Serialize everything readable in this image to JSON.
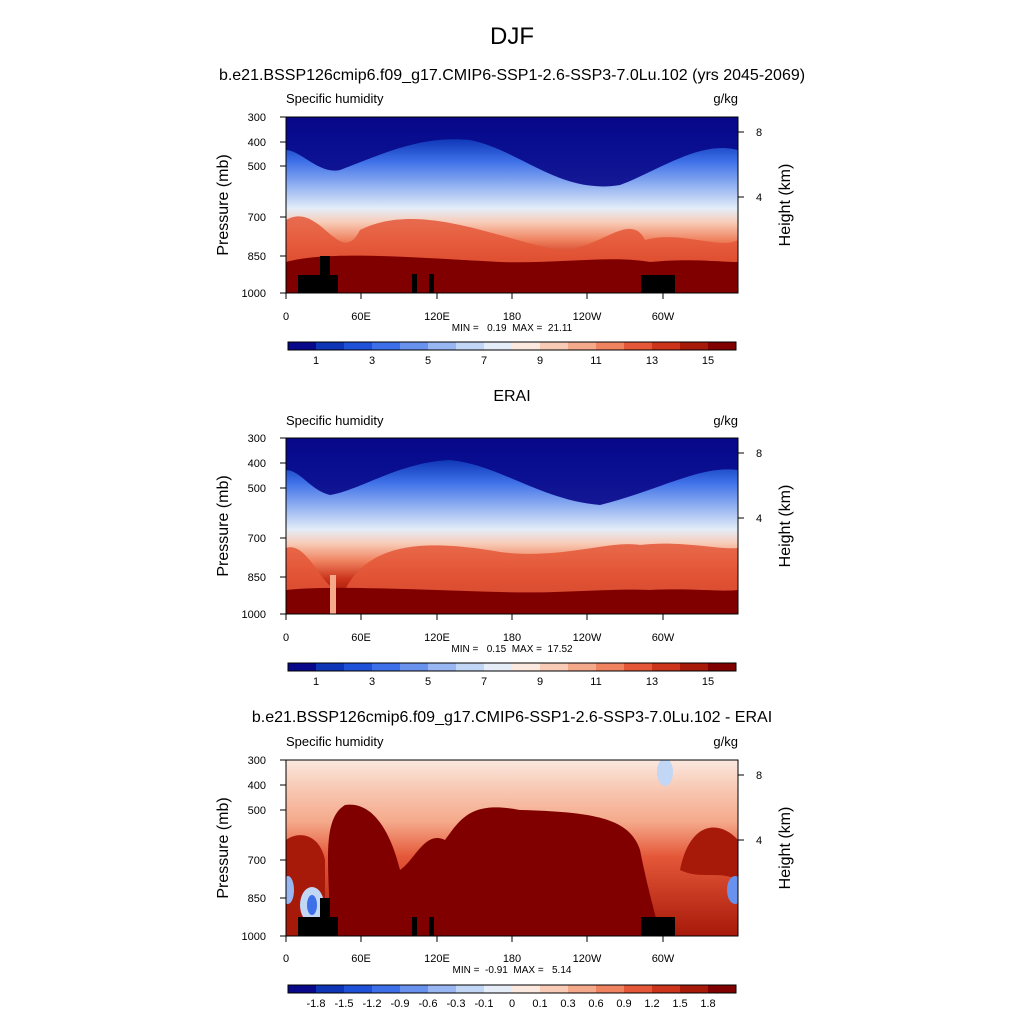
{
  "figure": {
    "title": "DJF"
  },
  "shared": {
    "variable_label": "Specific humidity",
    "units_label": "g/kg",
    "left_axis_title": "Pressure (mb)",
    "right_axis_title": "Height (km)"
  },
  "chart_data": [
    {
      "type": "heatmap",
      "title": "b.e21.BSSP126cmip6.f09_g17.CMIP6-SSP1-2.6-SSP3-7.0Lu.102 (yrs 2045-2069)",
      "subtitle_left": "Specific humidity",
      "subtitle_right": "g/kg",
      "ylabel": "Pressure (mb)",
      "ylabel_right": "Height (km)",
      "x_ticks": [
        "0",
        "60E",
        "120E",
        "180",
        "120W",
        "60W"
      ],
      "y_ticks": [
        300,
        400,
        500,
        700,
        850,
        1000
      ],
      "y_right_ticks": [
        8,
        4
      ],
      "xlim": [
        0,
        360
      ],
      "ylim": [
        1000,
        300
      ],
      "stats_text": "MIN =   0.19  MAX =  21.11",
      "min": 0.19,
      "max": 21.11,
      "levels": [
        0,
        1,
        2,
        3,
        4,
        5,
        6,
        7,
        8,
        9,
        10,
        11,
        12,
        13,
        14,
        15,
        16
      ],
      "colorbar_labels": [
        "1",
        "3",
        "5",
        "7",
        "9",
        "11",
        "13",
        "15"
      ],
      "colorbar_colors": [
        "#08088a",
        "#0d35b5",
        "#1f50d8",
        "#3d6fe8",
        "#6892ee",
        "#98b6f2",
        "#c2d6f5",
        "#e4edf8",
        "#fbe8df",
        "#f8cbb7",
        "#f5a98b",
        "#ef825f",
        "#e45738",
        "#cc341c",
        "#a71909",
        "#800000"
      ],
      "colorbar_position": "bottom"
    },
    {
      "type": "heatmap",
      "title": "ERAI",
      "subtitle_left": "Specific humidity",
      "subtitle_right": "g/kg",
      "ylabel": "Pressure (mb)",
      "ylabel_right": "Height (km)",
      "x_ticks": [
        "0",
        "60E",
        "120E",
        "180",
        "120W",
        "60W"
      ],
      "y_ticks": [
        300,
        400,
        500,
        700,
        850,
        1000
      ],
      "y_right_ticks": [
        8,
        4
      ],
      "xlim": [
        0,
        360
      ],
      "ylim": [
        1000,
        300
      ],
      "stats_text": "MIN =   0.15  MAX =  17.52",
      "min": 0.15,
      "max": 17.52,
      "levels": [
        0,
        1,
        2,
        3,
        4,
        5,
        6,
        7,
        8,
        9,
        10,
        11,
        12,
        13,
        14,
        15,
        16
      ],
      "colorbar_labels": [
        "1",
        "3",
        "5",
        "7",
        "9",
        "11",
        "13",
        "15"
      ],
      "colorbar_colors": [
        "#08088a",
        "#0d35b5",
        "#1f50d8",
        "#3d6fe8",
        "#6892ee",
        "#98b6f2",
        "#c2d6f5",
        "#e4edf8",
        "#fbe8df",
        "#f8cbb7",
        "#f5a98b",
        "#ef825f",
        "#e45738",
        "#cc341c",
        "#a71909",
        "#800000"
      ],
      "colorbar_position": "bottom"
    },
    {
      "type": "heatmap",
      "title": "b.e21.BSSP126cmip6.f09_g17.CMIP6-SSP1-2.6-SSP3-7.0Lu.102 - ERAI",
      "subtitle_left": "Specific humidity",
      "subtitle_right": "g/kg",
      "ylabel": "Pressure (mb)",
      "ylabel_right": "Height (km)",
      "x_ticks": [
        "0",
        "60E",
        "120E",
        "180",
        "120W",
        "60W"
      ],
      "y_ticks": [
        300,
        400,
        500,
        700,
        850,
        1000
      ],
      "y_right_ticks": [
        8,
        4
      ],
      "xlim": [
        0,
        360
      ],
      "ylim": [
        1000,
        300
      ],
      "stats_text": "MIN =  -0.91  MAX =   5.14",
      "min": -0.91,
      "max": 5.14,
      "levels": [
        -1.8,
        -1.5,
        -1.2,
        -0.9,
        -0.6,
        -0.3,
        -0.1,
        0,
        0.1,
        0.3,
        0.6,
        0.9,
        1.2,
        1.5,
        1.8
      ],
      "colorbar_labels": [
        "-1.8",
        "-1.5",
        "-1.2",
        "-0.9",
        "-0.6",
        "-0.3",
        "-0.1",
        "0",
        "0.1",
        "0.3",
        "0.6",
        "0.9",
        "1.2",
        "1.5",
        "1.8"
      ],
      "colorbar_colors": [
        "#08088a",
        "#0d35b5",
        "#1f50d8",
        "#3d6fe8",
        "#6892ee",
        "#98b6f2",
        "#c2d6f5",
        "#e4edf8",
        "#fbe8df",
        "#f8cbb7",
        "#f5a98b",
        "#ef825f",
        "#e45738",
        "#cc341c",
        "#a71909",
        "#800000"
      ],
      "colorbar_position": "bottom"
    }
  ]
}
